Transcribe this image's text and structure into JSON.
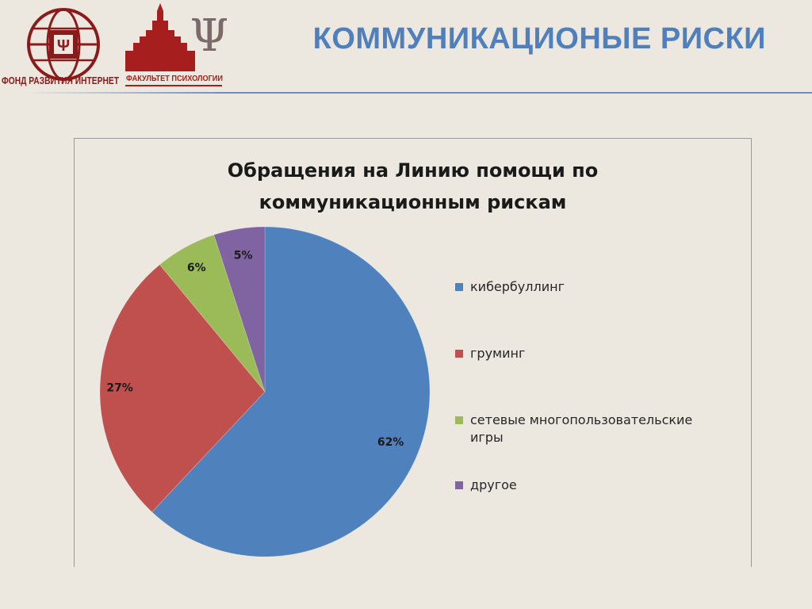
{
  "header": {
    "title": "КОММУНИКАЦИОНЫЕ РИСКИ",
    "logo_fond_text": "ФОНД РАЗВИТИЯ ИНТЕРНЕТ",
    "logo_psy_text": "ФАКУЛЬТЕТ ПСИХОЛОГИИ",
    "logo_letter": "Ψ"
  },
  "colors": {
    "title_blue": "#4f7fbd",
    "logo_red": "#8b1a1a",
    "series": [
      "#4f81bd",
      "#c0504d",
      "#9bbb59",
      "#8064a2"
    ]
  },
  "chart_data": {
    "type": "pie",
    "title": "Обращения на Линию помощи по коммуникационным рискам",
    "title_lines": [
      "Обращения на Линию помощи по",
      "коммуникационным рискам"
    ],
    "categories": [
      "кибербуллинг",
      "груминг",
      "сетевые многопользовательские игры",
      "другое"
    ],
    "values": [
      62,
      27,
      6,
      5
    ],
    "data_labels": [
      "62%",
      "27%",
      "6%",
      "5%"
    ],
    "legend_position": "right"
  }
}
